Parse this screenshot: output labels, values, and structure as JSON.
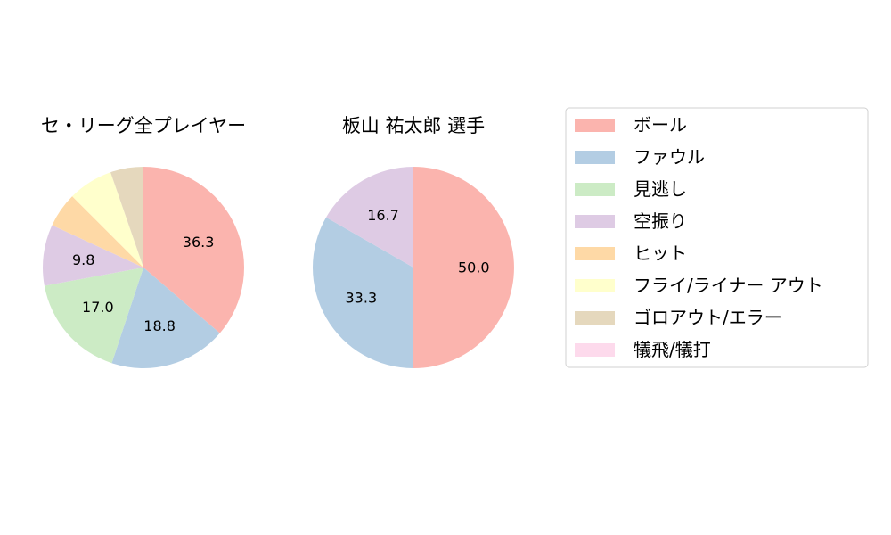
{
  "chart_data": [
    {
      "type": "pie",
      "title": "セ・リーグ全プレイヤー",
      "categories": [
        "ボール",
        "ファウル",
        "見逃し",
        "空振り",
        "ヒット",
        "フライ/ライナー アウト",
        "ゴロアウト/エラー",
        "犠飛/犠打"
      ],
      "values": [
        36.3,
        18.8,
        17.0,
        9.8,
        5.6,
        7.2,
        5.3,
        0.0
      ],
      "labels": [
        "36.3",
        "18.8",
        "17.0",
        "9.8",
        "",
        "",
        "",
        ""
      ],
      "start_angle_deg": 90,
      "direction": "clockwise"
    },
    {
      "type": "pie",
      "title": "板山 祐太郎  選手",
      "categories": [
        "ボール",
        "ファウル",
        "見逃し",
        "空振り",
        "ヒット",
        "フライ/ライナー アウト",
        "ゴロアウト/エラー",
        "犠飛/犠打"
      ],
      "values": [
        50.0,
        33.3,
        0.0,
        16.7,
        0.0,
        0.0,
        0.0,
        0.0
      ],
      "labels": [
        "50.0",
        "33.3",
        "",
        "16.7",
        "",
        "",
        "",
        ""
      ],
      "start_angle_deg": 90,
      "direction": "clockwise"
    }
  ],
  "legend": {
    "placement": "right",
    "entries": [
      "ボール",
      "ファウル",
      "見逃し",
      "空振り",
      "ヒット",
      "フライ/ライナー アウト",
      "ゴロアウト/エラー",
      "犠飛/犠打"
    ]
  },
  "colors": [
    "#fbb4ae",
    "#b3cde3",
    "#ccebc5",
    "#decbe4",
    "#fed9a6",
    "#ffffcc",
    "#e5d8bd",
    "#fddaec"
  ]
}
